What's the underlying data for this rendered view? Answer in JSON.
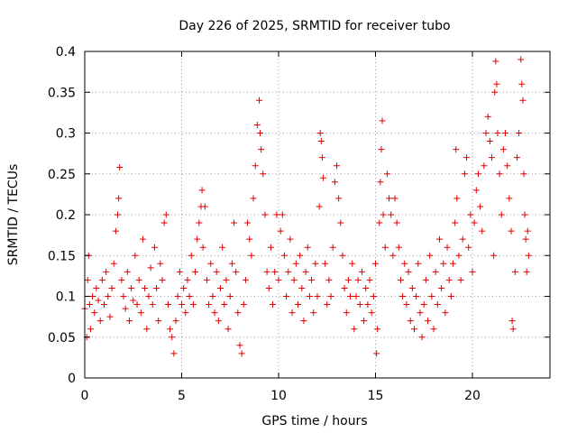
{
  "chart_data": {
    "type": "scatter",
    "title": "Day 226 of 2025, SRMTID for receiver tubo",
    "xlabel": "GPS time / hours",
    "ylabel": "SRMTID / TECUs",
    "xlim": [
      0,
      24
    ],
    "ylim": [
      0,
      0.4
    ],
    "x_ticks": [
      0,
      5,
      10,
      15,
      20
    ],
    "x_tick_labels": [
      "0",
      "5",
      "10",
      "15",
      "20"
    ],
    "y_ticks": [
      0,
      0.05,
      0.1,
      0.15,
      0.2,
      0.25,
      0.3,
      0.35,
      0.4
    ],
    "y_tick_labels": [
      "0",
      "0.05",
      "0.1",
      "0.15",
      "0.2",
      "0.25",
      "0.3",
      "0.35",
      "0.4"
    ],
    "grid": true,
    "marker": "+",
    "marker_color": "#e00000",
    "series": [
      {
        "name": "SRMTID",
        "points": [
          [
            0.0,
            0.085
          ],
          [
            0.1,
            0.05
          ],
          [
            0.15,
            0.12
          ],
          [
            0.2,
            0.15
          ],
          [
            0.25,
            0.09
          ],
          [
            0.3,
            0.06
          ],
          [
            0.4,
            0.1
          ],
          [
            0.5,
            0.08
          ],
          [
            0.6,
            0.11
          ],
          [
            0.7,
            0.095
          ],
          [
            0.8,
            0.07
          ],
          [
            0.9,
            0.12
          ],
          [
            1.0,
            0.09
          ],
          [
            1.1,
            0.13
          ],
          [
            1.2,
            0.1
          ],
          [
            1.3,
            0.075
          ],
          [
            1.4,
            0.11
          ],
          [
            1.5,
            0.14
          ],
          [
            1.6,
            0.18
          ],
          [
            1.7,
            0.2
          ],
          [
            1.75,
            0.22
          ],
          [
            1.8,
            0.258
          ],
          [
            1.9,
            0.12
          ],
          [
            2.0,
            0.1
          ],
          [
            2.1,
            0.085
          ],
          [
            2.2,
            0.13
          ],
          [
            2.3,
            0.07
          ],
          [
            2.4,
            0.11
          ],
          [
            2.5,
            0.095
          ],
          [
            2.6,
            0.15
          ],
          [
            2.7,
            0.09
          ],
          [
            2.8,
            0.12
          ],
          [
            2.9,
            0.08
          ],
          [
            3.0,
            0.17
          ],
          [
            3.1,
            0.11
          ],
          [
            3.2,
            0.06
          ],
          [
            3.3,
            0.1
          ],
          [
            3.4,
            0.135
          ],
          [
            3.5,
            0.09
          ],
          [
            3.6,
            0.16
          ],
          [
            3.7,
            0.11
          ],
          [
            3.8,
            0.07
          ],
          [
            3.9,
            0.14
          ],
          [
            4.0,
            0.12
          ],
          [
            4.1,
            0.19
          ],
          [
            4.2,
            0.2
          ],
          [
            4.3,
            0.09
          ],
          [
            4.4,
            0.06
          ],
          [
            4.5,
            0.05
          ],
          [
            4.6,
            0.03
          ],
          [
            4.7,
            0.07
          ],
          [
            4.8,
            0.1
          ],
          [
            4.9,
            0.13
          ],
          [
            5.0,
            0.09
          ],
          [
            5.1,
            0.11
          ],
          [
            5.2,
            0.08
          ],
          [
            5.3,
            0.12
          ],
          [
            5.4,
            0.1
          ],
          [
            5.5,
            0.15
          ],
          [
            5.6,
            0.09
          ],
          [
            5.7,
            0.13
          ],
          [
            5.8,
            0.17
          ],
          [
            5.9,
            0.19
          ],
          [
            6.0,
            0.21
          ],
          [
            6.05,
            0.23
          ],
          [
            6.1,
            0.16
          ],
          [
            6.2,
            0.21
          ],
          [
            6.3,
            0.12
          ],
          [
            6.4,
            0.09
          ],
          [
            6.5,
            0.14
          ],
          [
            6.6,
            0.1
          ],
          [
            6.7,
            0.08
          ],
          [
            6.8,
            0.13
          ],
          [
            6.9,
            0.07
          ],
          [
            7.0,
            0.11
          ],
          [
            7.1,
            0.16
          ],
          [
            7.2,
            0.09
          ],
          [
            7.3,
            0.12
          ],
          [
            7.4,
            0.06
          ],
          [
            7.5,
            0.1
          ],
          [
            7.6,
            0.14
          ],
          [
            7.7,
            0.19
          ],
          [
            7.8,
            0.13
          ],
          [
            7.9,
            0.08
          ],
          [
            8.0,
            0.04
          ],
          [
            8.1,
            0.03
          ],
          [
            8.2,
            0.09
          ],
          [
            8.3,
            0.12
          ],
          [
            8.4,
            0.19
          ],
          [
            8.5,
            0.17
          ],
          [
            8.6,
            0.15
          ],
          [
            8.7,
            0.22
          ],
          [
            8.8,
            0.26
          ],
          [
            8.9,
            0.31
          ],
          [
            9.0,
            0.34
          ],
          [
            9.05,
            0.3
          ],
          [
            9.1,
            0.28
          ],
          [
            9.2,
            0.25
          ],
          [
            9.3,
            0.2
          ],
          [
            9.4,
            0.13
          ],
          [
            9.5,
            0.11
          ],
          [
            9.6,
            0.16
          ],
          [
            9.7,
            0.09
          ],
          [
            9.8,
            0.13
          ],
          [
            9.9,
            0.2
          ],
          [
            10.0,
            0.12
          ],
          [
            10.1,
            0.18
          ],
          [
            10.2,
            0.2
          ],
          [
            10.3,
            0.15
          ],
          [
            10.4,
            0.1
          ],
          [
            10.5,
            0.13
          ],
          [
            10.6,
            0.17
          ],
          [
            10.7,
            0.08
          ],
          [
            10.8,
            0.12
          ],
          [
            10.9,
            0.14
          ],
          [
            11.0,
            0.09
          ],
          [
            11.1,
            0.15
          ],
          [
            11.2,
            0.11
          ],
          [
            11.3,
            0.07
          ],
          [
            11.4,
            0.13
          ],
          [
            11.5,
            0.16
          ],
          [
            11.6,
            0.1
          ],
          [
            11.7,
            0.12
          ],
          [
            11.8,
            0.08
          ],
          [
            11.9,
            0.14
          ],
          [
            12.0,
            0.1
          ],
          [
            12.1,
            0.21
          ],
          [
            12.15,
            0.3
          ],
          [
            12.2,
            0.29
          ],
          [
            12.25,
            0.27
          ],
          [
            12.3,
            0.245
          ],
          [
            12.4,
            0.14
          ],
          [
            12.5,
            0.09
          ],
          [
            12.6,
            0.12
          ],
          [
            12.7,
            0.1
          ],
          [
            12.8,
            0.16
          ],
          [
            12.9,
            0.24
          ],
          [
            13.0,
            0.26
          ],
          [
            13.1,
            0.22
          ],
          [
            13.2,
            0.19
          ],
          [
            13.3,
            0.15
          ],
          [
            13.4,
            0.11
          ],
          [
            13.5,
            0.08
          ],
          [
            13.6,
            0.12
          ],
          [
            13.7,
            0.1
          ],
          [
            13.8,
            0.14
          ],
          [
            13.9,
            0.06
          ],
          [
            14.0,
            0.1
          ],
          [
            14.1,
            0.12
          ],
          [
            14.2,
            0.09
          ],
          [
            14.3,
            0.13
          ],
          [
            14.4,
            0.07
          ],
          [
            14.5,
            0.11
          ],
          [
            14.6,
            0.09
          ],
          [
            14.7,
            0.12
          ],
          [
            14.8,
            0.08
          ],
          [
            14.9,
            0.1
          ],
          [
            15.0,
            0.14
          ],
          [
            15.05,
            0.03
          ],
          [
            15.1,
            0.06
          ],
          [
            15.2,
            0.19
          ],
          [
            15.25,
            0.24
          ],
          [
            15.3,
            0.28
          ],
          [
            15.35,
            0.315
          ],
          [
            15.4,
            0.2
          ],
          [
            15.5,
            0.16
          ],
          [
            15.6,
            0.25
          ],
          [
            15.7,
            0.22
          ],
          [
            15.8,
            0.2
          ],
          [
            15.9,
            0.15
          ],
          [
            16.0,
            0.22
          ],
          [
            16.1,
            0.19
          ],
          [
            16.2,
            0.16
          ],
          [
            16.3,
            0.12
          ],
          [
            16.4,
            0.1
          ],
          [
            16.5,
            0.14
          ],
          [
            16.6,
            0.09
          ],
          [
            16.7,
            0.13
          ],
          [
            16.8,
            0.07
          ],
          [
            16.9,
            0.11
          ],
          [
            17.0,
            0.06
          ],
          [
            17.1,
            0.1
          ],
          [
            17.2,
            0.14
          ],
          [
            17.3,
            0.08
          ],
          [
            17.4,
            0.05
          ],
          [
            17.5,
            0.09
          ],
          [
            17.6,
            0.12
          ],
          [
            17.7,
            0.07
          ],
          [
            17.8,
            0.15
          ],
          [
            17.9,
            0.1
          ],
          [
            18.0,
            0.06
          ],
          [
            18.1,
            0.13
          ],
          [
            18.2,
            0.09
          ],
          [
            18.3,
            0.17
          ],
          [
            18.4,
            0.11
          ],
          [
            18.5,
            0.14
          ],
          [
            18.6,
            0.08
          ],
          [
            18.7,
            0.16
          ],
          [
            18.8,
            0.12
          ],
          [
            18.9,
            0.1
          ],
          [
            19.0,
            0.14
          ],
          [
            19.1,
            0.19
          ],
          [
            19.15,
            0.28
          ],
          [
            19.2,
            0.22
          ],
          [
            19.3,
            0.15
          ],
          [
            19.4,
            0.12
          ],
          [
            19.5,
            0.17
          ],
          [
            19.6,
            0.25
          ],
          [
            19.7,
            0.27
          ],
          [
            19.8,
            0.16
          ],
          [
            19.9,
            0.2
          ],
          [
            20.0,
            0.13
          ],
          [
            20.1,
            0.19
          ],
          [
            20.2,
            0.23
          ],
          [
            20.3,
            0.25
          ],
          [
            20.4,
            0.21
          ],
          [
            20.5,
            0.18
          ],
          [
            20.6,
            0.26
          ],
          [
            20.7,
            0.3
          ],
          [
            20.8,
            0.32
          ],
          [
            20.9,
            0.29
          ],
          [
            21.0,
            0.27
          ],
          [
            21.1,
            0.15
          ],
          [
            21.15,
            0.35
          ],
          [
            21.2,
            0.388
          ],
          [
            21.25,
            0.36
          ],
          [
            21.3,
            0.3
          ],
          [
            21.4,
            0.25
          ],
          [
            21.5,
            0.2
          ],
          [
            21.6,
            0.28
          ],
          [
            21.7,
            0.3
          ],
          [
            21.8,
            0.26
          ],
          [
            21.9,
            0.22
          ],
          [
            22.0,
            0.18
          ],
          [
            22.05,
            0.07
          ],
          [
            22.1,
            0.06
          ],
          [
            22.2,
            0.13
          ],
          [
            22.3,
            0.27
          ],
          [
            22.4,
            0.3
          ],
          [
            22.5,
            0.39
          ],
          [
            22.55,
            0.36
          ],
          [
            22.6,
            0.34
          ],
          [
            22.65,
            0.25
          ],
          [
            22.7,
            0.2
          ],
          [
            22.75,
            0.17
          ],
          [
            22.8,
            0.13
          ],
          [
            22.85,
            0.18
          ],
          [
            22.9,
            0.15
          ]
        ]
      }
    ]
  }
}
